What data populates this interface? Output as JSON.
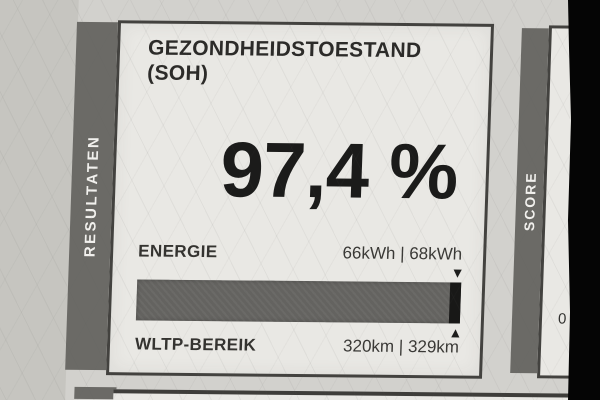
{
  "colors": {
    "paper_bg": "#d2d1cd",
    "paper_bg_left": "#c6c5c0",
    "card_bg": "#e9e8e4",
    "card_border": "#43423f",
    "sidebar_bg": "#6b6a66",
    "sidebar_text": "#f2f1ee",
    "title_text": "#2c2b29",
    "value_text": "#3a3936",
    "gauge_bar": "#646360",
    "gauge_tip": "#181817",
    "letterbox": "#050505"
  },
  "results_section": {
    "sidebar_label": "RESULTATEN",
    "card": {
      "title_line1": "GEZONDHEIDSTOESTAND",
      "title_line2": "(SOH)",
      "soh_value": "97,4 %",
      "energy_label": "ENERGIE",
      "energy_value": "66kWh | 68kWh",
      "range_label": "WLTP-BEREIK",
      "range_value": "320km | 329km",
      "gauge": {
        "percent": 97.4,
        "marker_down": "▼",
        "marker_up": "▲"
      }
    }
  },
  "score_section": {
    "sidebar_label": "SCORE",
    "edge_fragment": "0"
  }
}
